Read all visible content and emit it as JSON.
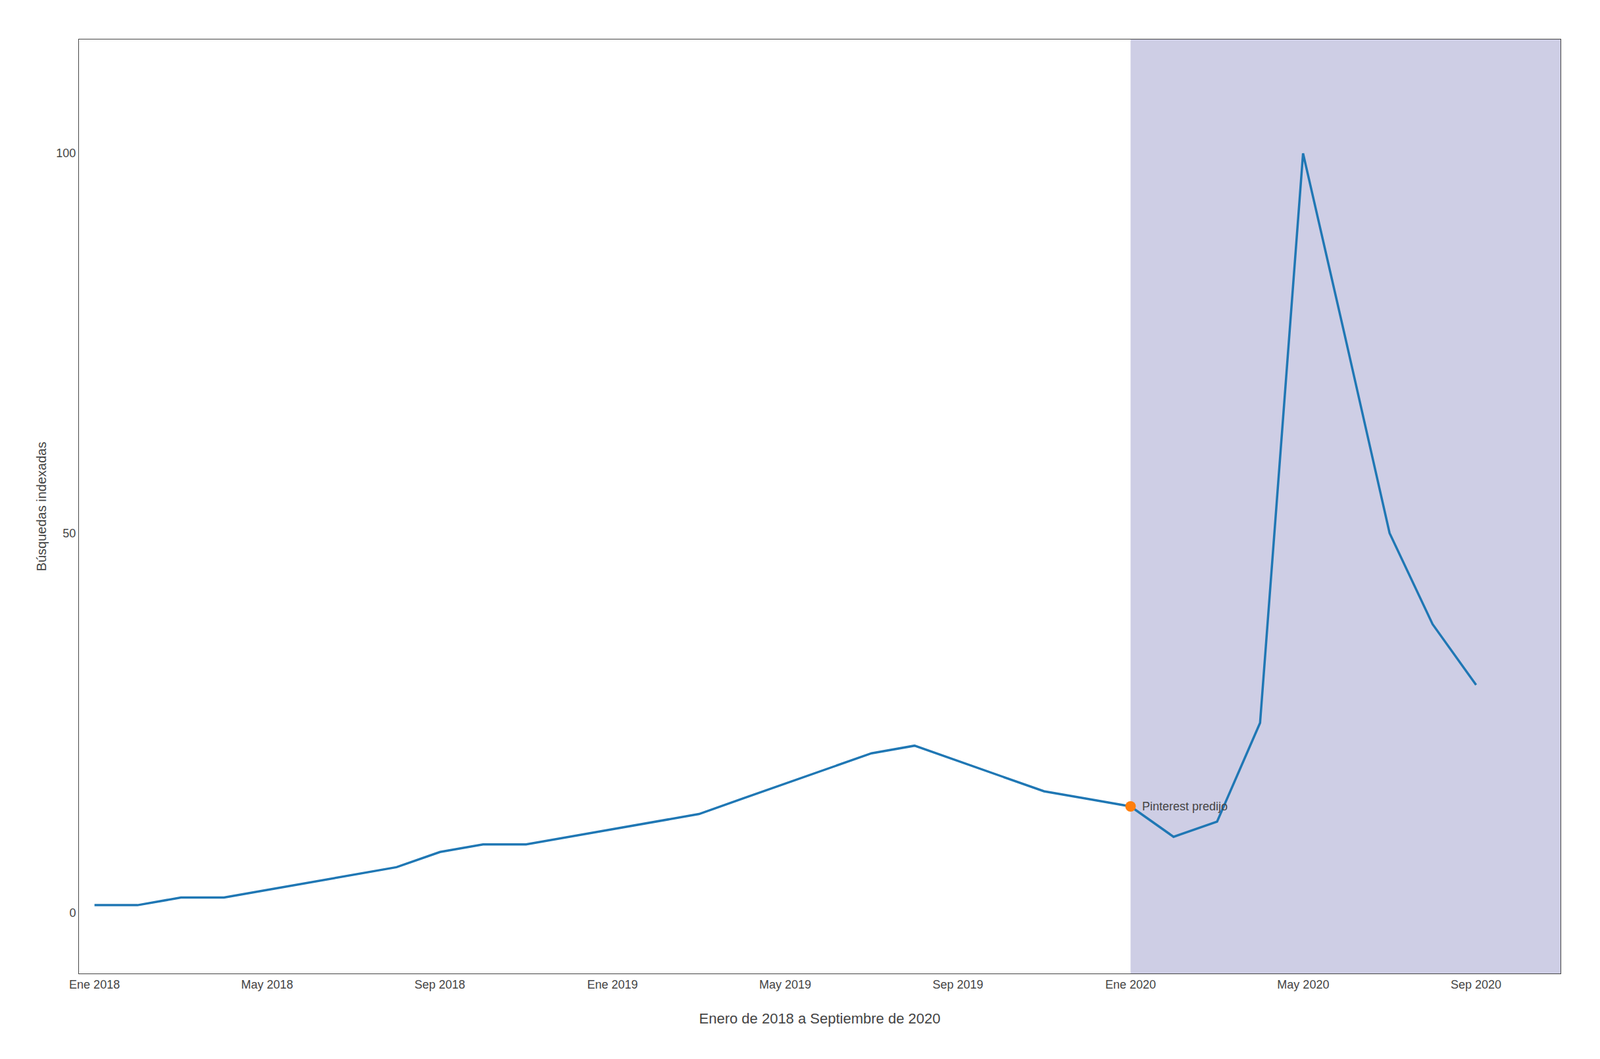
{
  "chart_data": {
    "type": "line",
    "xlabel": "Enero de 2018 a Septiembre de 2020",
    "ylabel": "Búsquedas indexadas",
    "x": [
      2018.0,
      2018.083,
      2018.167,
      2018.25,
      2018.333,
      2018.417,
      2018.5,
      2018.583,
      2018.667,
      2018.75,
      2018.833,
      2018.917,
      2019.0,
      2019.083,
      2019.167,
      2019.25,
      2019.333,
      2019.417,
      2019.5,
      2019.583,
      2019.667,
      2019.75,
      2019.833,
      2019.917,
      2020.0,
      2020.083,
      2020.167,
      2020.25,
      2020.333,
      2020.417,
      2020.5,
      2020.583,
      2020.667
    ],
    "values": [
      1,
      1,
      2,
      2,
      3,
      4,
      5,
      6,
      8,
      9,
      9,
      10,
      11,
      12,
      13,
      15,
      17,
      19,
      21,
      22,
      20,
      18,
      16,
      15,
      14,
      10,
      12,
      25,
      100,
      75,
      50,
      38,
      30
    ],
    "xlim": [
      2017.97,
      2020.83
    ],
    "xticks": [
      {
        "value": 2018.0,
        "label": "Ene 2018"
      },
      {
        "value": 2018.3333,
        "label": "May 2018"
      },
      {
        "value": 2018.6667,
        "label": "Sep 2018"
      },
      {
        "value": 2019.0,
        "label": "Ene 2019"
      },
      {
        "value": 2019.3333,
        "label": "May 2019"
      },
      {
        "value": 2019.6667,
        "label": "Sep 2019"
      },
      {
        "value": 2020.0,
        "label": "Ene 2020"
      },
      {
        "value": 2020.3333,
        "label": "May 2020"
      },
      {
        "value": 2020.6667,
        "label": "Sep 2020"
      }
    ],
    "ylim": [
      -8,
      115
    ],
    "yticks": [
      0,
      50,
      100
    ],
    "grid": false,
    "shaded_region": {
      "x0": 2020.0,
      "color": "#3d3d99"
    },
    "annotations": [
      {
        "text": "Pinterest predijo",
        "x": 2020.0,
        "y": 14
      }
    ]
  }
}
